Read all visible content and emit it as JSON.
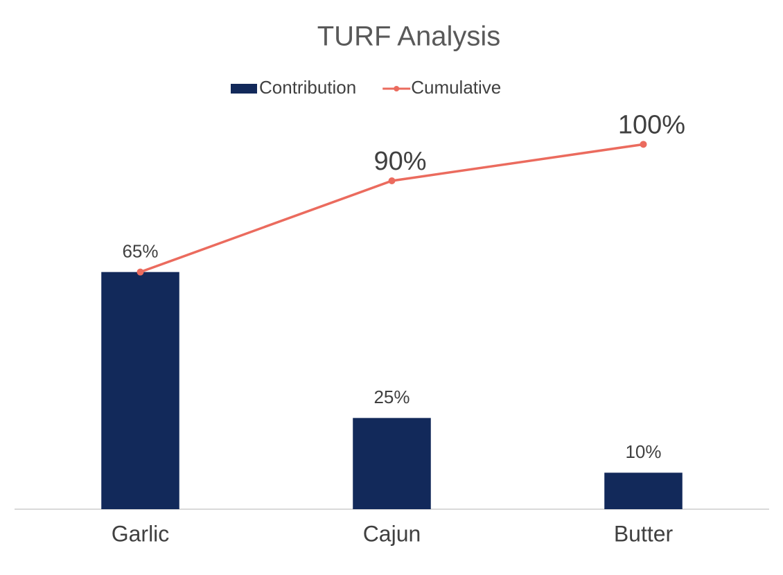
{
  "chart_data": {
    "type": "bar",
    "title": "TURF Analysis",
    "categories": [
      "Garlic",
      "Cajun",
      "Butter"
    ],
    "series": [
      {
        "name": "Contribution",
        "color": "#12295a",
        "values": [
          65,
          25,
          10
        ],
        "value_labels": [
          "65%",
          "25%",
          "10%"
        ]
      },
      {
        "name": "Cumulative",
        "type": "line",
        "color": "#eb6b5e",
        "values": [
          65,
          90,
          100
        ],
        "value_labels": [
          null,
          "90%",
          "100%"
        ]
      }
    ],
    "ylim": [
      0,
      120
    ],
    "legend": "top"
  }
}
